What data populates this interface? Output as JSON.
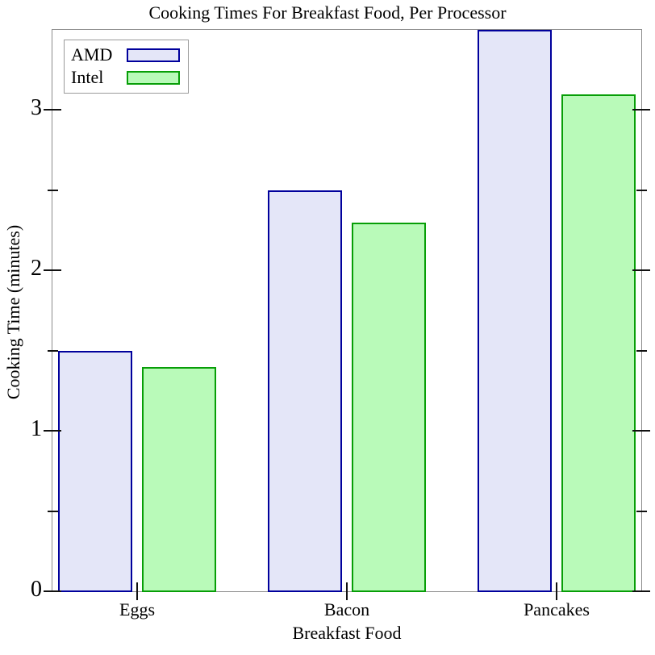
{
  "chart_data": {
    "type": "bar",
    "title": "Cooking Times For Breakfast Food, Per Processor",
    "xlabel": "Breakfast Food",
    "ylabel": "Cooking Time (minutes)",
    "categories": [
      "Eggs",
      "Bacon",
      "Pancakes"
    ],
    "series": [
      {
        "name": "AMD",
        "values": [
          1.5,
          2.5,
          3.5
        ],
        "fill": "#e4e6f8",
        "stroke": "#00009c"
      },
      {
        "name": "Intel",
        "values": [
          1.4,
          2.3,
          3.1
        ],
        "fill": "#b9fab9",
        "stroke": "#079e07"
      }
    ],
    "ylim": [
      0,
      3.5
    ],
    "yticks_major": [
      0,
      1,
      2,
      3
    ],
    "yticks_minor": [
      0.5,
      1.5,
      2.5
    ],
    "legend_position": "top-left",
    "grid": false,
    "frame_color": "#8b8b8b",
    "tick_color": "#111111",
    "text_color": "#000000"
  }
}
